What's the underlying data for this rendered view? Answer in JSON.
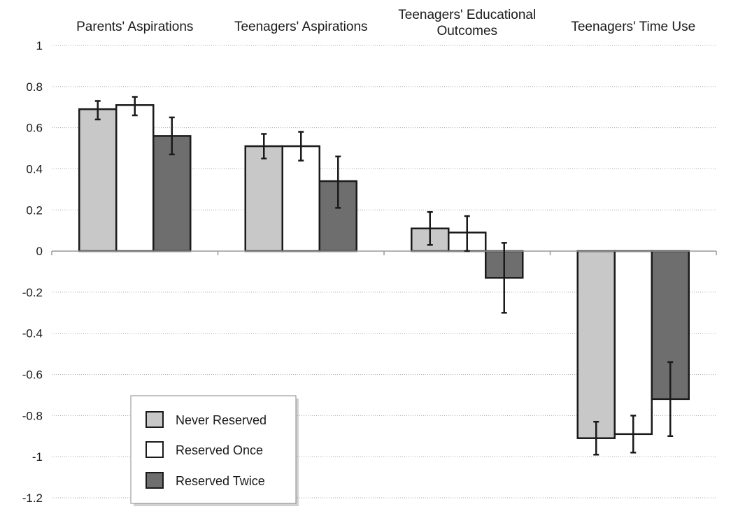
{
  "chart_data": {
    "type": "bar",
    "categories": [
      [
        "Parents' Aspirations"
      ],
      [
        "Teenagers' Aspirations"
      ],
      [
        "Teenagers' Educational",
        "Outcomes"
      ],
      [
        "Teenagers' Time Use"
      ]
    ],
    "series": [
      {
        "name": "Never Reserved",
        "color": "#c8c8c8",
        "values": [
          0.69,
          0.51,
          0.11,
          -0.91
        ],
        "error_low": [
          0.64,
          0.45,
          0.03,
          -0.99
        ],
        "error_high": [
          0.73,
          0.57,
          0.19,
          -0.83
        ]
      },
      {
        "name": "Reserved Once",
        "color": "#ffffff",
        "values": [
          0.71,
          0.51,
          0.09,
          -0.89
        ],
        "error_low": [
          0.66,
          0.44,
          0.0,
          -0.98
        ],
        "error_high": [
          0.75,
          0.58,
          0.17,
          -0.8
        ]
      },
      {
        "name": "Reserved Twice",
        "color": "#6e6e6e",
        "values": [
          0.56,
          0.34,
          -0.13,
          -0.72
        ],
        "error_low": [
          0.47,
          0.21,
          -0.3,
          -0.9
        ],
        "error_high": [
          0.65,
          0.46,
          0.04,
          -0.54
        ]
      }
    ],
    "ylim": [
      -1.2,
      1
    ],
    "yticks": [
      "1",
      "0.8",
      "0.6",
      "0.4",
      "0.2",
      "0",
      "-0.2",
      "-0.4",
      "-0.6",
      "-0.8",
      "-1",
      "-1.2"
    ],
    "grid": true,
    "legend_position": "bottom-left",
    "error_bars": true
  }
}
